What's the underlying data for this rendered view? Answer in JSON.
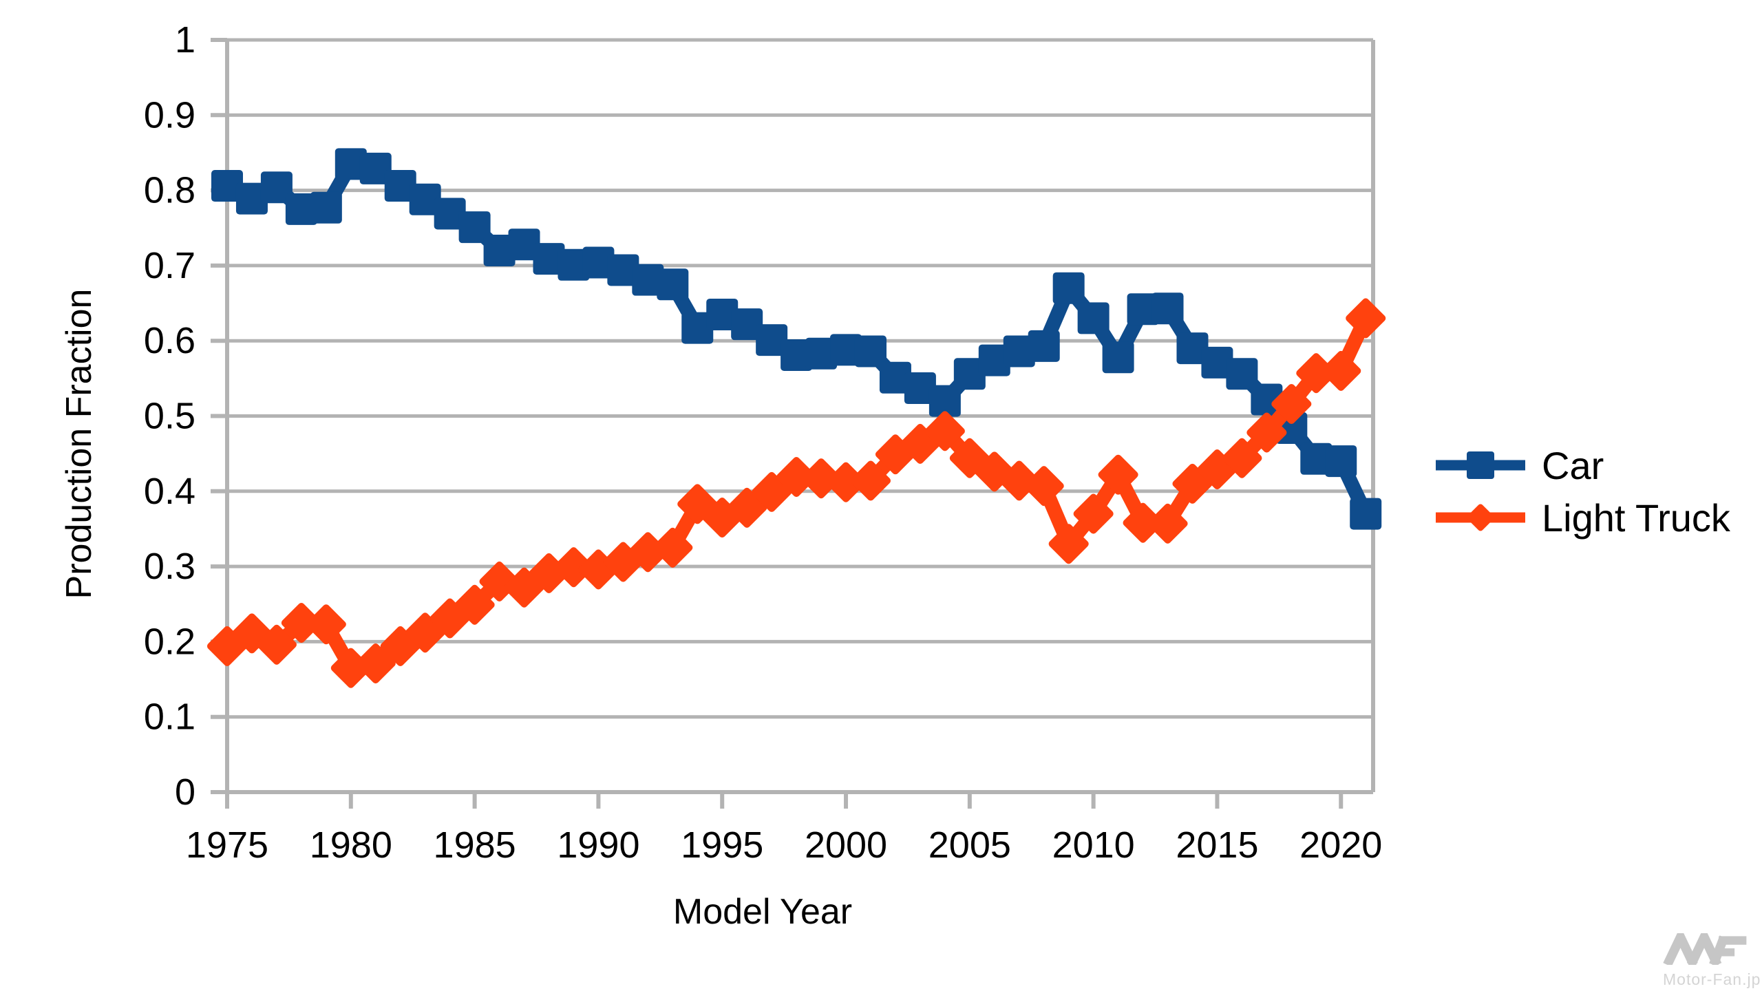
{
  "chart_data": {
    "type": "line",
    "title": "",
    "xlabel": "Model Year",
    "ylabel": "Production Fraction",
    "xlim": [
      1975,
      2021.3
    ],
    "ylim": [
      0,
      1
    ],
    "grid": true,
    "legend_position": "right",
    "colors": {
      "car": "#0f4c8c",
      "light_truck": "#ff420e",
      "grid": "#b3b3b3",
      "text": "#000000"
    },
    "x": [
      1975,
      1976,
      1977,
      1978,
      1979,
      1980,
      1981,
      1982,
      1983,
      1984,
      1985,
      1986,
      1987,
      1988,
      1989,
      1990,
      1991,
      1992,
      1993,
      1994,
      1995,
      1996,
      1997,
      1998,
      1999,
      2000,
      2001,
      2002,
      2003,
      2004,
      2005,
      2006,
      2007,
      2008,
      2009,
      2010,
      2011,
      2012,
      2013,
      2014,
      2015,
      2016,
      2017,
      2018,
      2019,
      2020,
      2021
    ],
    "series": [
      {
        "name": "Car",
        "marker": "square",
        "color": "#0f4c8c",
        "values": [
          0.806,
          0.789,
          0.804,
          0.775,
          0.777,
          0.835,
          0.829,
          0.806,
          0.788,
          0.769,
          0.751,
          0.72,
          0.728,
          0.709,
          0.701,
          0.704,
          0.694,
          0.681,
          0.675,
          0.617,
          0.635,
          0.622,
          0.601,
          0.581,
          0.583,
          0.588,
          0.586,
          0.551,
          0.537,
          0.52,
          0.556,
          0.574,
          0.586,
          0.593,
          0.67,
          0.63,
          0.578,
          0.642,
          0.643,
          0.59,
          0.571,
          0.556,
          0.522,
          0.484,
          0.443,
          0.44,
          0.37
        ]
      },
      {
        "name": "Light Truck",
        "marker": "diamond",
        "color": "#ff420e",
        "values": [
          0.194,
          0.211,
          0.196,
          0.225,
          0.223,
          0.165,
          0.171,
          0.194,
          0.212,
          0.231,
          0.249,
          0.28,
          0.272,
          0.291,
          0.299,
          0.296,
          0.306,
          0.319,
          0.325,
          0.383,
          0.365,
          0.378,
          0.399,
          0.419,
          0.417,
          0.412,
          0.414,
          0.449,
          0.463,
          0.48,
          0.444,
          0.426,
          0.414,
          0.407,
          0.33,
          0.37,
          0.422,
          0.358,
          0.357,
          0.41,
          0.429,
          0.444,
          0.478,
          0.516,
          0.557,
          0.56,
          0.63
        ]
      }
    ],
    "x_ticks": [
      {
        "value": 1975,
        "label": "1975"
      },
      {
        "value": 1980,
        "label": "1980"
      },
      {
        "value": 1985,
        "label": "1985"
      },
      {
        "value": 1990,
        "label": "1990"
      },
      {
        "value": 1995,
        "label": "1995"
      },
      {
        "value": 2000,
        "label": "2000"
      },
      {
        "value": 2005,
        "label": "2005"
      },
      {
        "value": 2010,
        "label": "2010"
      },
      {
        "value": 2015,
        "label": "2015"
      },
      {
        "value": 2020,
        "label": "2020"
      }
    ],
    "y_ticks": [
      {
        "value": 0,
        "label": "0"
      },
      {
        "value": 0.1,
        "label": "0.1"
      },
      {
        "value": 0.2,
        "label": "0.2"
      },
      {
        "value": 0.3,
        "label": "0.3"
      },
      {
        "value": 0.4,
        "label": "0.4"
      },
      {
        "value": 0.5,
        "label": "0.5"
      },
      {
        "value": 0.6,
        "label": "0.6"
      },
      {
        "value": 0.7,
        "label": "0.7"
      },
      {
        "value": 0.8,
        "label": "0.8"
      },
      {
        "value": 0.9,
        "label": "0.9"
      },
      {
        "value": 1,
        "label": "1"
      }
    ]
  },
  "watermark": {
    "text": "Motor-Fan.jp"
  }
}
